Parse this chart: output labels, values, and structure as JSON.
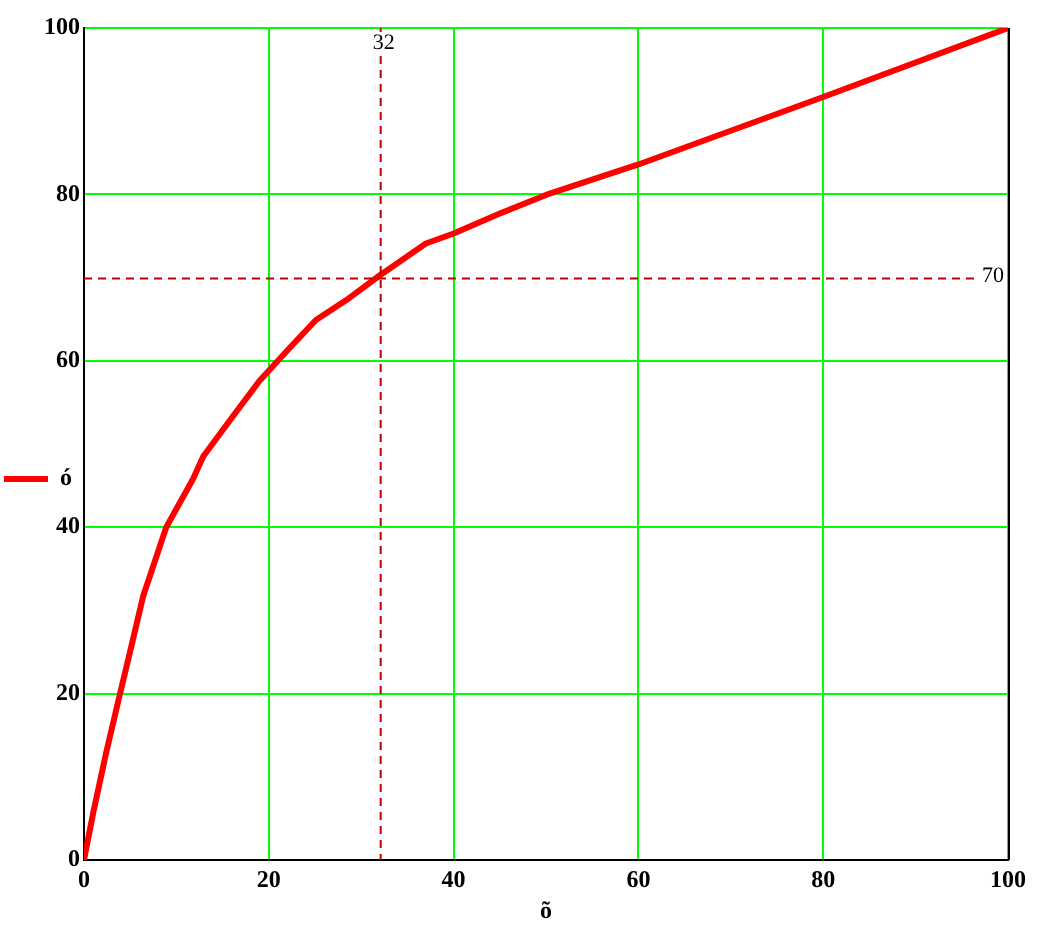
{
  "chart_data": {
    "type": "line",
    "xlabel": "õ",
    "x": [
      0,
      1,
      2.4,
      3.9,
      5.3,
      6.4,
      8.9,
      11.8,
      12.9,
      16.1,
      19,
      22.3,
      25.1,
      28.4,
      31.8,
      37,
      40,
      45,
      50.4,
      60,
      80,
      100
    ],
    "series": [
      {
        "name": "ó",
        "color": "#ff0000",
        "values": [
          0,
          5.7,
          12.9,
          20,
          26.5,
          31.7,
          40,
          45.8,
          48.5,
          53.3,
          57.6,
          61.6,
          64.9,
          67.3,
          70.1,
          74.1,
          75.3,
          77.7,
          80.1,
          83.6,
          91.7,
          100
        ]
      }
    ],
    "xlim": [
      0,
      100
    ],
    "xticks": [
      0,
      20,
      40,
      60,
      80,
      100
    ],
    "ylim": [
      0,
      100
    ],
    "yticks": [
      0,
      20,
      40,
      60,
      80,
      100
    ],
    "grid": true,
    "legend": "left",
    "line_style": "solid",
    "ref_lines": [
      {
        "axis": "x",
        "value": 32,
        "label": "32",
        "color": "#c00000",
        "line_style": "dashed"
      },
      {
        "axis": "y",
        "value": 70,
        "label": "70",
        "color": "#c00000",
        "line_style": "dashed"
      }
    ]
  }
}
